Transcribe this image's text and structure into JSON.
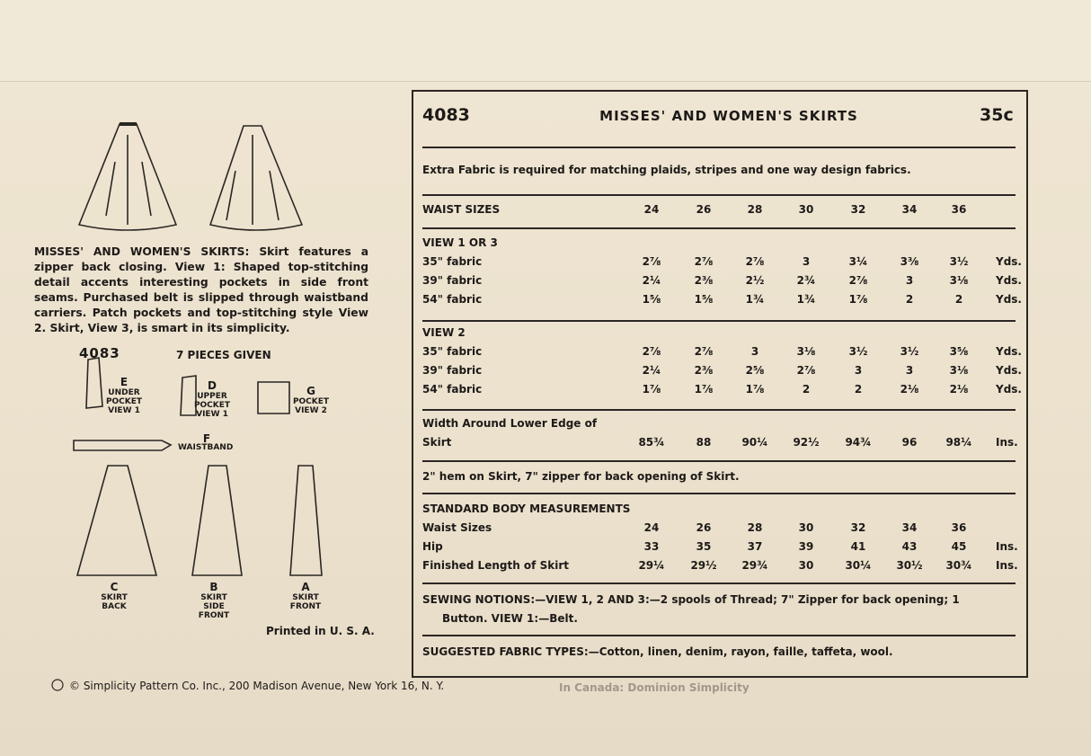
{
  "pattern_info": {
    "number": "4083",
    "title": "MISSES' AND WOMEN'S SKIRTS",
    "price": "35c"
  },
  "extra_fabric_note": "Extra Fabric is required for matching plaids, stripes and one way design fabrics.",
  "waist_sizes": {
    "label": "WAIST SIZES",
    "sizes": [
      24,
      26,
      28,
      30,
      32,
      34,
      36
    ]
  },
  "yardage_sections": [
    {
      "title": "VIEW 1 OR 3",
      "rows": [
        {
          "label": "35\" fabric",
          "values": [
            "2⅞",
            "2⅞",
            "2⅞",
            "3",
            "3¼",
            "3⅜",
            "3½"
          ],
          "unit": "Yds."
        },
        {
          "label": "39\" fabric",
          "values": [
            "2¼",
            "2⅜",
            "2½",
            "2¾",
            "2⅞",
            "3",
            "3⅛"
          ],
          "unit": "Yds."
        },
        {
          "label": "54\" fabric",
          "values": [
            "1⅝",
            "1⅝",
            "1¾",
            "1¾",
            "1⅞",
            "2",
            "2"
          ],
          "unit": "Yds."
        }
      ]
    },
    {
      "title": "VIEW 2",
      "rows": [
        {
          "label": "35\" fabric",
          "values": [
            "2⅞",
            "2⅞",
            "3",
            "3⅛",
            "3½",
            "3½",
            "3⅝"
          ],
          "unit": "Yds."
        },
        {
          "label": "39\" fabric",
          "values": [
            "2¼",
            "2⅜",
            "2⅝",
            "2⅞",
            "3",
            "3",
            "3⅛"
          ],
          "unit": "Yds."
        },
        {
          "label": "54\" fabric",
          "values": [
            "1⅞",
            "1⅞",
            "1⅞",
            "2",
            "2",
            "2⅛",
            "2⅛"
          ],
          "unit": "Yds."
        }
      ]
    }
  ],
  "width_around": {
    "label_lines": [
      "Width Around Lower Edge of",
      "Skirt"
    ],
    "values": [
      "85¾",
      "88",
      "90¼",
      "92½",
      "94¾",
      "96",
      "98¼"
    ],
    "unit": "Ins."
  },
  "hem_note": "2\" hem on Skirt,   7\" zipper for back opening of Skirt.",
  "body_measurements": {
    "title": "STANDARD BODY MEASUREMENTS",
    "rows": [
      {
        "label": "Waist Sizes",
        "values": [
          24,
          26,
          28,
          30,
          32,
          34,
          36
        ]
      },
      {
        "label": "Hip",
        "values": [
          33,
          35,
          37,
          39,
          41,
          43,
          45
        ],
        "unit": "Ins."
      },
      {
        "label": "Finished Length of Skirt",
        "values": [
          "29¼",
          "29½",
          "29¾",
          "30",
          "30¼",
          "30½",
          "30¾"
        ],
        "unit": "Ins."
      }
    ]
  },
  "sewing_notions": [
    "SEWING NOTIONS:—VIEW 1, 2 AND 3:—2 spools of Thread; 7\" Zipper for back opening; 1",
    "Button. VIEW 1:—Belt."
  ],
  "suggested_fabrics": "SUGGESTED FABRIC TYPES:—Cotton, linen, denim, rayon, faille, taffeta, wool.",
  "description": {
    "heading": "MISSES' AND WOMEN'S SKIRTS:",
    "text": "Skirt features a zipper back closing. View 1: Shaped top-stitching detail accents interesting pockets in side front seams. Purchased belt is slipped through waistband carriers. Patch pockets and top-stitching style View 2. Skirt, View 3, is smart in its simplicity."
  },
  "pieces_header": {
    "number": "4083",
    "count": "7 PIECES GIVEN"
  },
  "pieces": [
    {
      "letter": "E",
      "lines": [
        "UNDER",
        "POCKET",
        "VIEW 1"
      ]
    },
    {
      "letter": "D",
      "lines": [
        "UPPER",
        "POCKET",
        "VIEW 1"
      ]
    },
    {
      "letter": "G",
      "lines": [
        "POCKET",
        "VIEW 2"
      ]
    },
    {
      "letter": "F",
      "lines": [
        "WAISTBAND"
      ]
    },
    {
      "letter": "C",
      "lines": [
        "SKIRT",
        "BACK"
      ]
    },
    {
      "letter": "B",
      "lines": [
        "SKIRT",
        "SIDE",
        "FRONT"
      ]
    },
    {
      "letter": "A",
      "lines": [
        "SKIRT",
        "FRONT"
      ]
    }
  ],
  "printed": "Printed in U. S. A.",
  "footer": {
    "copyright": "© Simplicity Pattern Co. Inc., 200 Madison Avenue, New York 16, N. Y.",
    "canada": "In Canada: Dominion Simplicity"
  }
}
